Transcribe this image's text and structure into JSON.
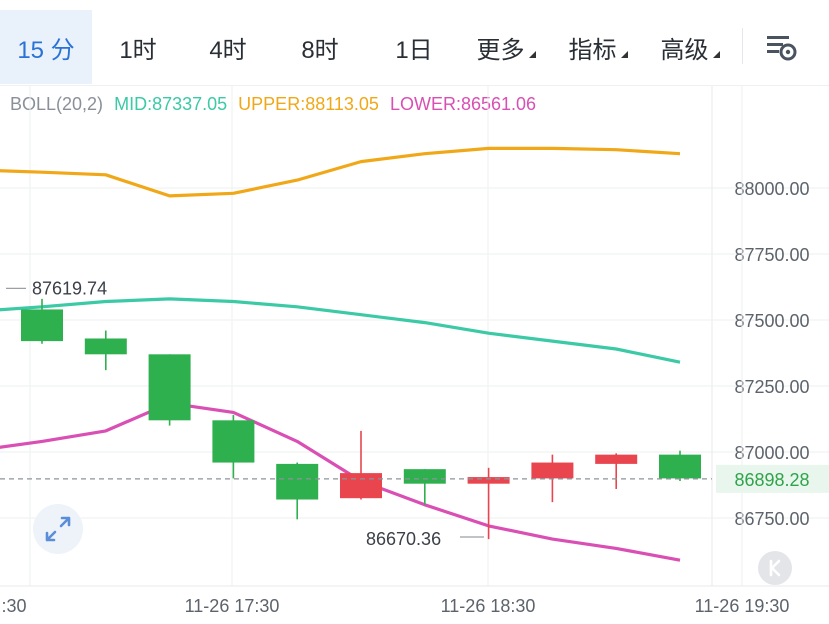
{
  "toolbar": {
    "intervals": [
      {
        "label": "15 分",
        "active": true
      },
      {
        "label": "1时",
        "active": false
      },
      {
        "label": "4时",
        "active": false
      },
      {
        "label": "8时",
        "active": false
      },
      {
        "label": "1日",
        "active": false
      }
    ],
    "menus": [
      {
        "label": "更多"
      },
      {
        "label": "指标"
      },
      {
        "label": "高级"
      }
    ],
    "settings_icon": "chart-settings-icon"
  },
  "indicator": {
    "name": "BOLL(20,2)",
    "mid": "MID:87337.05",
    "upper": "UPPER:88113.05",
    "lower": "LOWER:86561.06",
    "colors": {
      "mid": "#3bc9a6",
      "upper": "#f0a818",
      "lower": "#d94fb4"
    }
  },
  "chart_data": {
    "type": "candlestick",
    "y_axis": {
      "ticks": [
        88000,
        87750,
        87500,
        87250,
        87000,
        86750
      ],
      "tick_labels": [
        "88000.00",
        "87750.00",
        "87500.00",
        "87250.00",
        "87000.00",
        "86750.00"
      ],
      "range": [
        86510,
        88290
      ]
    },
    "x_axis": {
      "tick_labels": [
        ":30",
        "11-26 17:30",
        "11-26 18:30",
        "11-26 19:30"
      ]
    },
    "current_price": {
      "value": 86898.28,
      "label": "86898.28"
    },
    "annotations": [
      {
        "label": "87619.74",
        "value": 87619.74
      },
      {
        "label": "86670.36",
        "value": 86670.36
      }
    ],
    "colors": {
      "up": "#2fb04f",
      "down": "#e8454f",
      "grid": "#eef0f2"
    },
    "candles": [
      {
        "open": 87420,
        "close": 87540,
        "high": 87580,
        "low": 87410
      },
      {
        "open": 87370,
        "close": 87430,
        "high": 87460,
        "low": 87310
      },
      {
        "open": 87120,
        "close": 87370,
        "high": 87370,
        "low": 87100
      },
      {
        "open": 86960,
        "close": 87120,
        "high": 87140,
        "low": 86900
      },
      {
        "open": 86820,
        "close": 86955,
        "high": 86960,
        "low": 86745
      },
      {
        "open": 86920,
        "close": 86825,
        "high": 87080,
        "low": 86820
      },
      {
        "open": 86880,
        "close": 86935,
        "high": 86935,
        "low": 86800
      },
      {
        "open": 86905,
        "close": 86880,
        "high": 86940,
        "low": 86670
      },
      {
        "open": 86960,
        "close": 86900,
        "high": 86990,
        "low": 86810
      },
      {
        "open": 86990,
        "close": 86955,
        "high": 86995,
        "low": 86860
      },
      {
        "open": 86900,
        "close": 86990,
        "high": 87005,
        "low": 86890
      }
    ],
    "bands": {
      "upper": [
        88060,
        88050,
        87970,
        87980,
        88030,
        88100,
        88130,
        88150,
        88150,
        88145,
        88130
      ],
      "mid": [
        87550,
        87570,
        87580,
        87570,
        87550,
        87520,
        87490,
        87450,
        87420,
        87390,
        87340
      ],
      "lower": [
        87040,
        87080,
        87185,
        87150,
        87040,
        86890,
        86800,
        86720,
        86670,
        86635,
        86590
      ]
    }
  }
}
